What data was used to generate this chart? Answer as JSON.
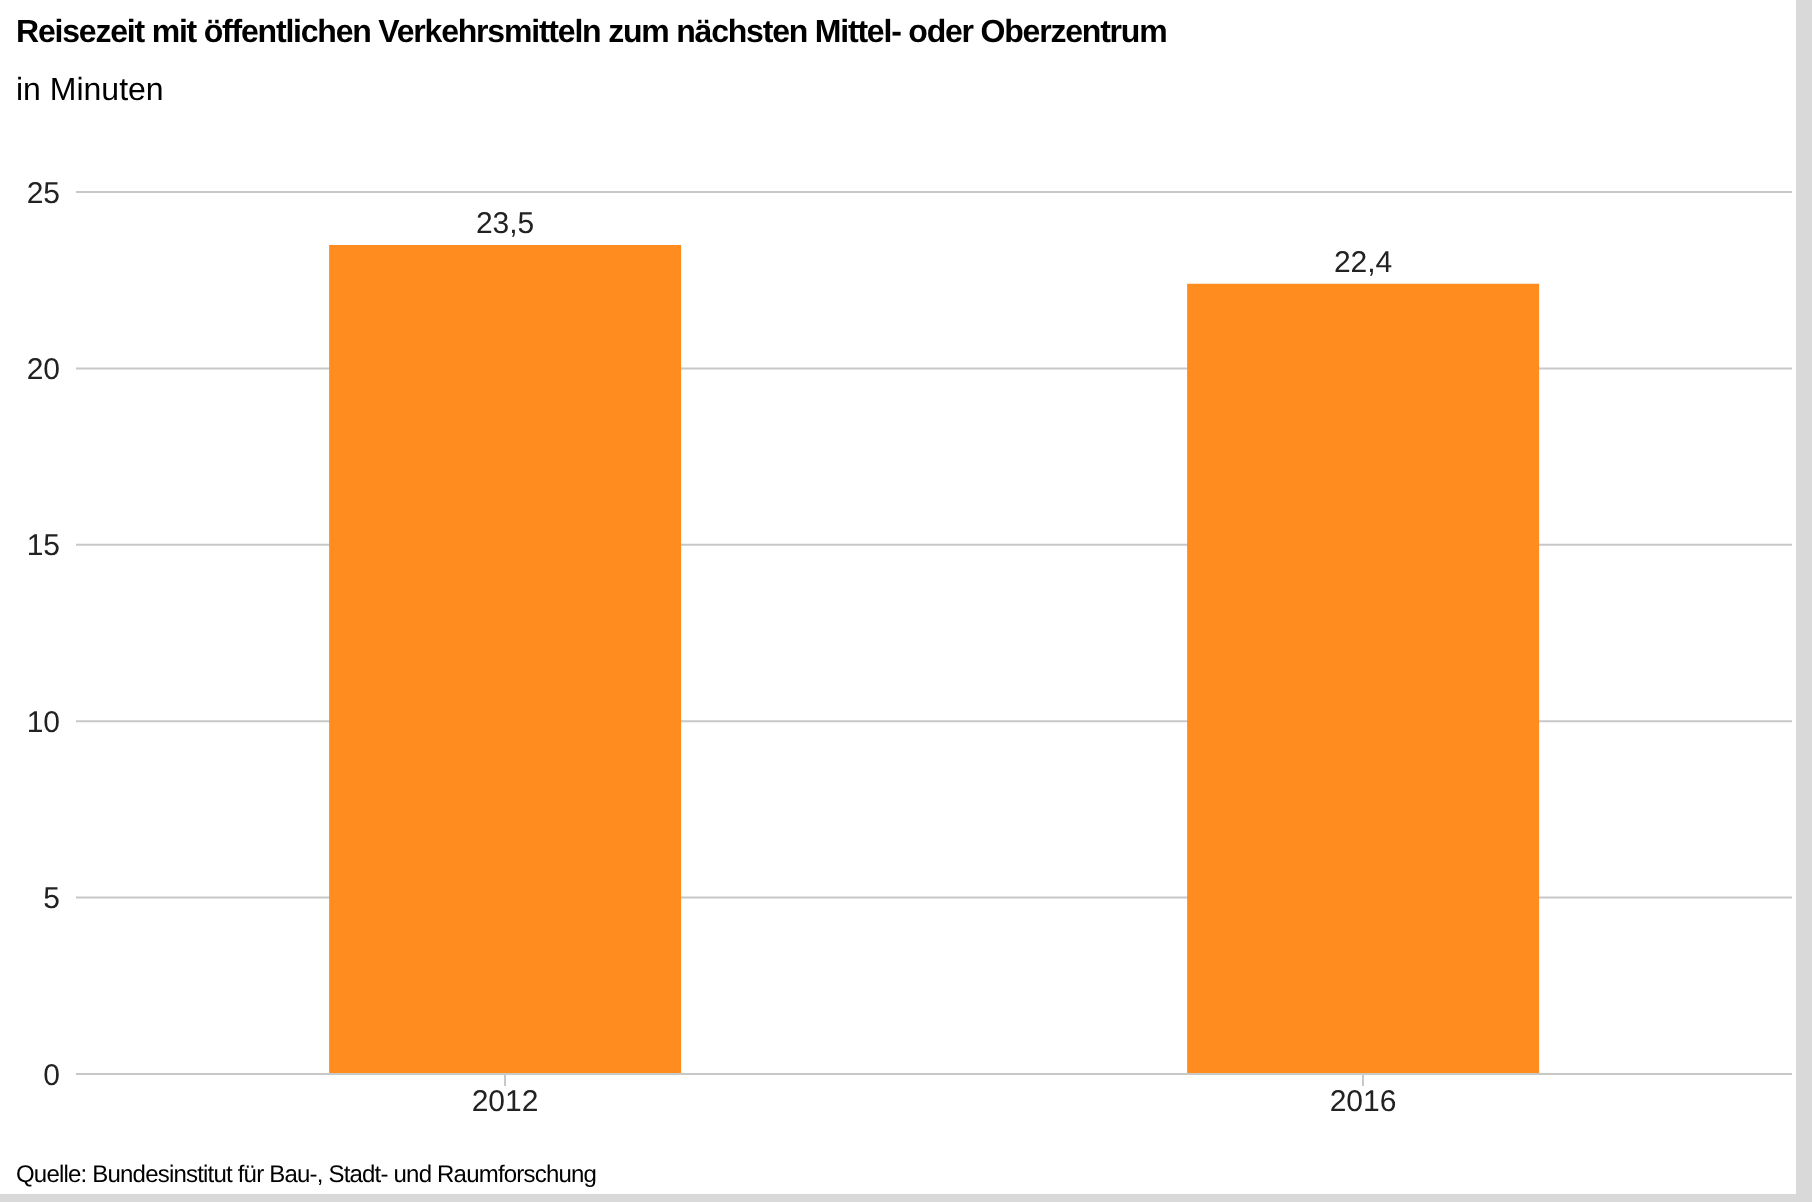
{
  "chart_data": {
    "type": "bar",
    "title": "Reisezeit mit öffentlichen Verkehrsmitteln zum nächsten Mittel- oder Oberzentrum",
    "subtitle": "in Minuten",
    "categories": [
      "2012",
      "2016"
    ],
    "values": [
      23.5,
      22.4
    ],
    "color": "#ff8c1e",
    "value_labels": [
      "23,5",
      "22,4"
    ],
    "ylim": [
      0,
      25
    ],
    "yticks": [
      0,
      5,
      10,
      15,
      20,
      25
    ],
    "grid": "y",
    "annotations": [
      "Quelle: Bundesinstitut für Bau-, Stadt- und Raumforschung"
    ]
  }
}
